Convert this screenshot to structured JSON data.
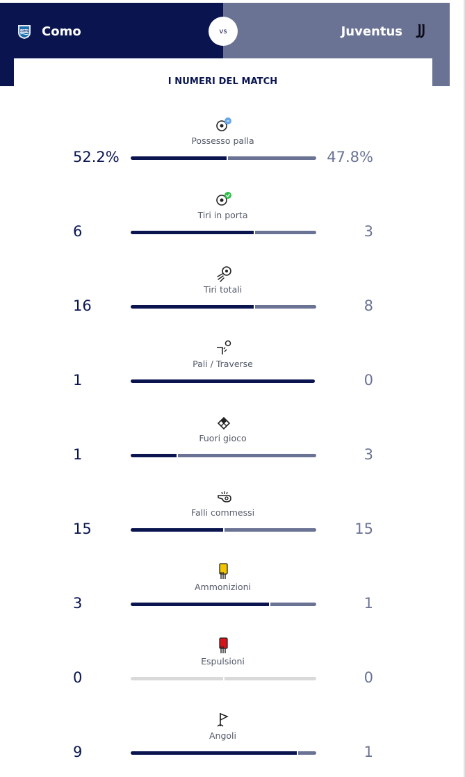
{
  "header": {
    "home_team": "Como",
    "away_team": "Juventus",
    "vs_label": "vs",
    "home_crest_text": "COMO",
    "colors": {
      "home": "#0a1550",
      "away": "#6b7395"
    }
  },
  "section_title": "I NUMERI DEL MATCH",
  "stats": [
    {
      "label": "Possesso palla",
      "home": "52.2%",
      "away": "47.8%",
      "icon": "possession-icon",
      "home_share": 0.522
    },
    {
      "label": "Tiri in porta",
      "home": "6",
      "away": "3",
      "icon": "shots-on-target-icon",
      "home_share": 0.667
    },
    {
      "label": "Tiri totali",
      "home": "16",
      "away": "8",
      "icon": "total-shots-icon",
      "home_share": 0.667
    },
    {
      "label": "Pali / Traverse",
      "home": "1",
      "away": "0",
      "icon": "woodwork-icon",
      "home_share": 1.0
    },
    {
      "label": "Fuori gioco",
      "home": "1",
      "away": "3",
      "icon": "offside-flag-icon",
      "home_share": 0.25
    },
    {
      "label": "Falli commessi",
      "home": "15",
      "away": "15",
      "icon": "whistle-icon",
      "home_share": 0.5
    },
    {
      "label": "Ammonizioni",
      "home": "3",
      "away": "1",
      "icon": "yellow-card-icon",
      "home_share": 0.75
    },
    {
      "label": "Espulsioni",
      "home": "0",
      "away": "0",
      "icon": "red-card-icon",
      "home_share": null
    },
    {
      "label": "Angoli",
      "home": "9",
      "away": "1",
      "icon": "corner-flag-icon",
      "home_share": 0.9
    }
  ]
}
